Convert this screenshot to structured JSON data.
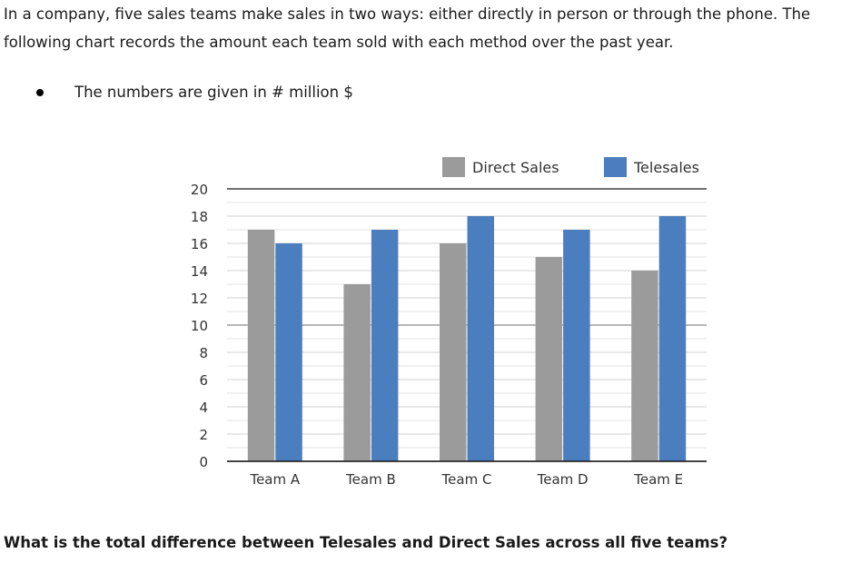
{
  "intro_text": "In a company, five sales teams make sales in two ways: either directly in person or through the phone. The following chart records the amount each team sold with each method over the past year.",
  "bullet_text": "The numbers are given in # million $",
  "question_text": "What is the total difference between Telesales and Direct Sales across all five teams?",
  "chart_data": {
    "type": "bar",
    "categories": [
      "Team A",
      "Team B",
      "Team C",
      "Team D",
      "Team E"
    ],
    "series": [
      {
        "name": "Direct Sales",
        "values": [
          17,
          13,
          16,
          15,
          14
        ],
        "color": "#9b9b9b"
      },
      {
        "name": "Telesales",
        "values": [
          16,
          17,
          18,
          17,
          18
        ],
        "color": "#4a7ebf"
      }
    ],
    "ylim": [
      0,
      20
    ],
    "yticks": [
      "0",
      "2",
      "4",
      "6",
      "8",
      "10",
      "12",
      "14",
      "16",
      "18",
      "20"
    ],
    "grid": true,
    "legend": "top-right"
  }
}
